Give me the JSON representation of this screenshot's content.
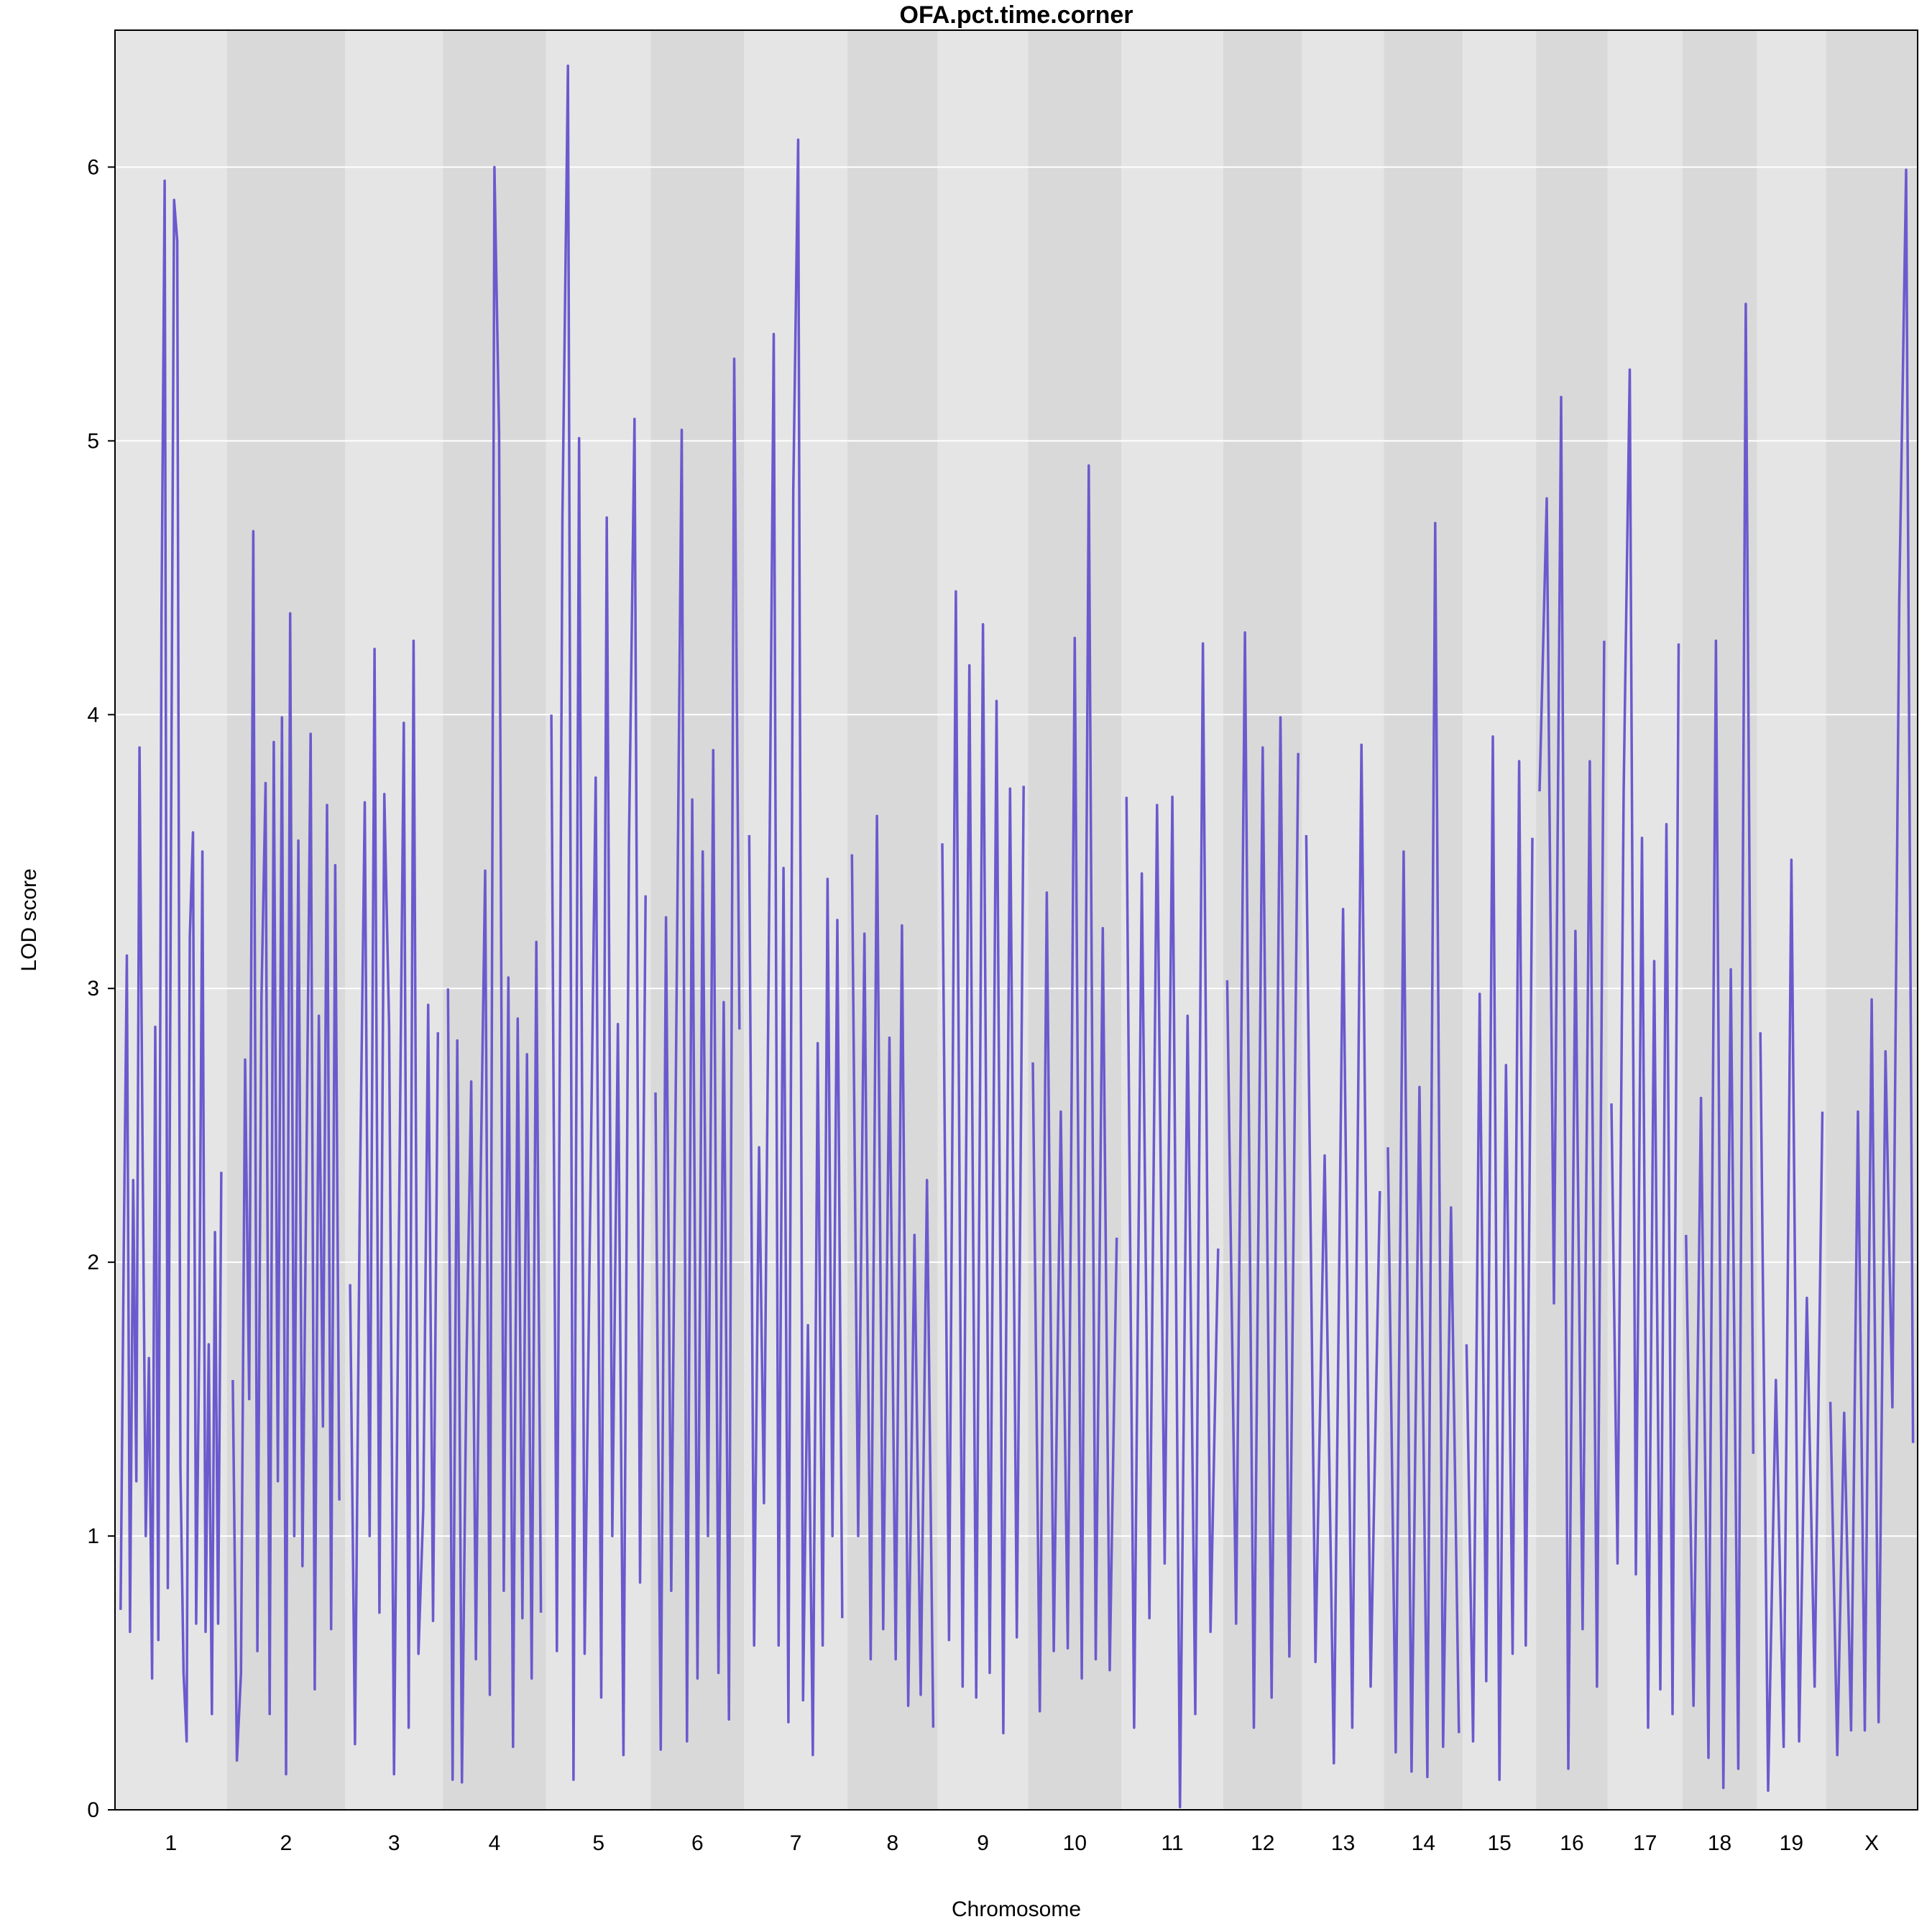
{
  "chart_data": {
    "type": "line",
    "title": "OFA.pct.time.corner",
    "xlabel": "Chromosome",
    "ylabel": "LOD score",
    "ylim": [
      0,
      6.5
    ],
    "y_ticks": [
      0,
      1,
      2,
      3,
      4,
      5,
      6
    ],
    "grid": "horizontal",
    "background_bands": "alternating light/dark grey per chromosome",
    "colors": {
      "line": "#6a5acd",
      "band_light": "#e5e5e5",
      "band_dark": "#d9d9d9",
      "grid": "#ffffff"
    },
    "chromosomes": [
      "1",
      "2",
      "3",
      "4",
      "5",
      "6",
      "7",
      "8",
      "9",
      "10",
      "11",
      "12",
      "13",
      "14",
      "15",
      "16",
      "17",
      "18",
      "19",
      "X"
    ],
    "series": [
      {
        "chromosome": "1",
        "values": [
          0.73,
          2.05,
          3.12,
          0.65,
          2.3,
          1.2,
          3.88,
          2.4,
          1.0,
          1.65,
          0.48,
          2.86,
          0.62,
          4.36,
          5.95,
          0.81,
          3.46,
          5.88,
          5.73,
          1.25,
          0.5,
          0.25,
          3.19,
          3.57,
          0.68,
          1.74,
          3.5,
          0.65,
          1.7,
          0.35,
          2.11,
          0.68,
          2.33
        ]
      },
      {
        "chromosome": "2",
        "values": [
          1.57,
          0.18,
          0.5,
          2.74,
          1.5,
          4.67,
          0.58,
          2.97,
          3.75,
          0.35,
          3.9,
          1.2,
          3.99,
          0.13,
          4.37,
          1.0,
          3.54,
          0.89,
          2.4,
          3.93,
          0.44,
          2.9,
          1.4,
          3.67,
          0.66,
          3.45,
          1.13
        ]
      },
      {
        "chromosome": "3",
        "values": [
          1.92,
          0.24,
          2.25,
          3.68,
          1.0,
          4.24,
          0.72,
          3.71,
          2.86,
          0.13,
          2.1,
          3.97,
          0.3,
          4.27,
          0.57,
          1.1,
          2.94,
          0.69,
          2.84
        ]
      },
      {
        "chromosome": "4",
        "values": [
          3.0,
          0.11,
          2.81,
          0.1,
          1.64,
          2.66,
          0.55,
          2.27,
          3.43,
          0.42,
          6.0,
          5.03,
          0.8,
          3.04,
          0.23,
          2.89,
          0.7,
          2.76,
          0.48,
          3.17,
          0.72
        ]
      },
      {
        "chromosome": "5",
        "values": [
          4.0,
          0.58,
          4.72,
          6.37,
          0.11,
          5.01,
          0.57,
          2.18,
          3.77,
          0.41,
          4.72,
          1.0,
          2.87,
          0.2,
          3.53,
          5.08,
          0.83,
          3.34
        ]
      },
      {
        "chromosome": "6",
        "values": [
          2.62,
          0.22,
          3.26,
          0.8,
          2.93,
          5.04,
          0.25,
          3.69,
          0.48,
          3.5,
          1.0,
          3.87,
          0.5,
          2.95,
          0.33,
          5.3,
          2.85
        ]
      },
      {
        "chromosome": "7",
        "values": [
          3.56,
          0.6,
          2.42,
          1.12,
          3.16,
          5.39,
          0.6,
          3.44,
          0.32,
          4.82,
          6.1,
          0.4,
          1.77,
          0.2,
          2.8,
          0.6,
          3.4,
          1.0,
          3.25,
          0.7
        ]
      },
      {
        "chromosome": "8",
        "values": [
          3.49,
          1.0,
          3.2,
          0.55,
          3.63,
          0.66,
          2.82,
          0.55,
          3.23,
          0.38,
          2.1,
          0.42,
          2.3,
          0.3
        ]
      },
      {
        "chromosome": "9",
        "values": [
          3.53,
          0.62,
          4.45,
          0.45,
          4.18,
          0.41,
          4.33,
          0.5,
          4.05,
          0.28,
          3.73,
          0.63,
          3.74
        ]
      },
      {
        "chromosome": "10",
        "values": [
          2.73,
          0.36,
          3.35,
          0.58,
          2.55,
          0.59,
          4.28,
          0.48,
          4.91,
          0.55,
          3.22,
          0.51,
          2.09
        ]
      },
      {
        "chromosome": "11",
        "values": [
          3.7,
          0.3,
          3.42,
          0.7,
          3.67,
          0.9,
          3.7,
          0.01,
          2.9,
          0.35,
          4.26,
          0.65,
          2.05
        ]
      },
      {
        "chromosome": "12",
        "values": [
          3.03,
          0.68,
          4.3,
          0.3,
          3.88,
          0.41,
          3.99,
          0.56,
          3.86
        ]
      },
      {
        "chromosome": "13",
        "values": [
          3.56,
          0.54,
          2.39,
          0.17,
          3.29,
          0.3,
          3.89,
          0.45,
          2.26
        ]
      },
      {
        "chromosome": "14",
        "values": [
          2.42,
          0.21,
          3.5,
          0.14,
          2.64,
          0.12,
          4.7,
          0.23,
          2.2,
          0.28
        ]
      },
      {
        "chromosome": "15",
        "values": [
          1.7,
          0.25,
          2.98,
          0.47,
          3.92,
          0.11,
          2.72,
          0.57,
          3.83,
          0.6,
          3.55
        ]
      },
      {
        "chromosome": "16",
        "values": [
          3.72,
          4.79,
          1.85,
          5.16,
          0.15,
          3.21,
          0.66,
          3.83,
          0.45,
          4.27
        ]
      },
      {
        "chromosome": "17",
        "values": [
          2.58,
          0.9,
          3.72,
          5.26,
          0.86,
          3.55,
          0.3,
          3.1,
          0.44,
          3.6,
          0.35,
          4.26
        ]
      },
      {
        "chromosome": "18",
        "values": [
          2.1,
          0.38,
          2.6,
          0.19,
          4.27,
          0.08,
          3.07,
          0.15,
          5.5,
          1.3
        ]
      },
      {
        "chromosome": "19",
        "values": [
          2.84,
          0.07,
          1.57,
          0.23,
          3.47,
          0.25,
          1.87,
          0.45,
          2.55
        ]
      },
      {
        "chromosome": "X",
        "values": [
          1.49,
          0.2,
          1.45,
          0.29,
          2.55,
          0.29,
          2.96,
          0.32,
          2.77,
          1.47,
          4.43,
          5.99,
          1.34
        ]
      }
    ]
  }
}
